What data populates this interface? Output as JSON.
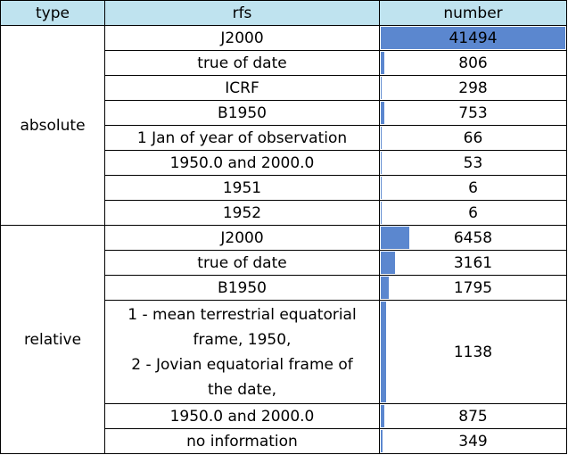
{
  "headers": {
    "type": "type",
    "rfs": "rfs",
    "number": "number"
  },
  "groups": [
    {
      "type": "absolute",
      "rows": [
        {
          "rfs": "J2000",
          "number": "41494",
          "bar_fraction": 1.0
        },
        {
          "rfs": "true of date",
          "number": "806",
          "bar_fraction": 0.0194
        },
        {
          "rfs": "ICRF",
          "number": "298",
          "bar_fraction": 0.0072
        },
        {
          "rfs": "B1950",
          "number": "753",
          "bar_fraction": 0.0181
        },
        {
          "rfs": "1 Jan of year of observation",
          "number": "66",
          "bar_fraction": 0.0016
        },
        {
          "rfs": "1950.0 and 2000.0",
          "number": "53",
          "bar_fraction": 0.0013
        },
        {
          "rfs": "1951",
          "number": "6",
          "bar_fraction": 0.0001
        },
        {
          "rfs": "1952",
          "number": "6",
          "bar_fraction": 0.0001
        }
      ]
    },
    {
      "type": "relative",
      "rows": [
        {
          "rfs": "J2000",
          "number": "6458",
          "bar_fraction": 0.156
        },
        {
          "rfs": "true of date",
          "number": "3161",
          "bar_fraction": 0.0762
        },
        {
          "rfs": "B1950",
          "number": "1795",
          "bar_fraction": 0.0433
        },
        {
          "rfs": "1 - mean terrestrial equatorial frame, 1950,\n2 - Jovian equatorial frame of the date,",
          "rfs_lines": [
            "1 - mean terrestrial equatorial",
            "frame, 1950,",
            "2 - Jovian equatorial frame of",
            "the date,"
          ],
          "number": "1138",
          "bar_fraction": 0.0274,
          "tall": true
        },
        {
          "rfs": "1950.0 and 2000.0",
          "number": "875",
          "bar_fraction": 0.0211
        },
        {
          "rfs": "no information",
          "number": "349",
          "bar_fraction": 0.0084
        }
      ]
    }
  ],
  "colors": {
    "header_bg": "#bfe3ef",
    "bar": "#5b87cf",
    "border": "#000000"
  }
}
